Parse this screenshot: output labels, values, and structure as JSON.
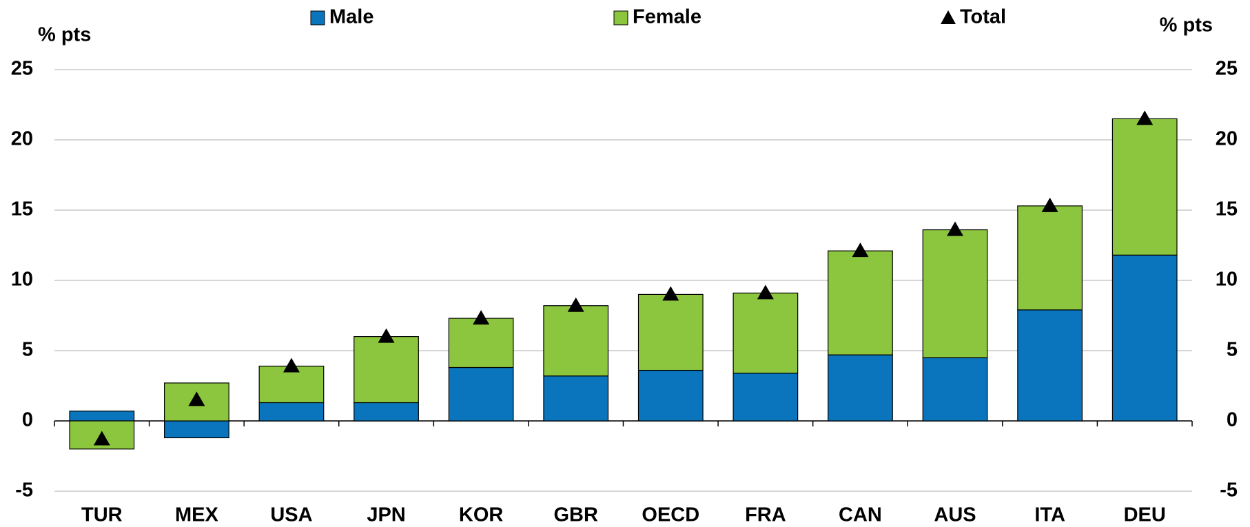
{
  "chart_data": {
    "type": "bar",
    "stacked": true,
    "y_label": "% pts",
    "y2_label": "% pts",
    "categories": [
      "TUR",
      "MEX",
      "USA",
      "JPN",
      "KOR",
      "GBR",
      "OECD",
      "FRA",
      "CAN",
      "AUS",
      "ITA",
      "DEU"
    ],
    "series": [
      {
        "name": "Male",
        "color": "#0a75bd",
        "values": [
          0.7,
          -1.2,
          1.3,
          1.3,
          3.8,
          3.2,
          3.6,
          3.4,
          4.7,
          4.5,
          7.9,
          11.8
        ]
      },
      {
        "name": "Female",
        "color": "#8cc63f",
        "values": [
          -2.0,
          2.7,
          2.6,
          4.7,
          3.5,
          5.0,
          5.4,
          5.7,
          7.4,
          9.1,
          7.4,
          9.7
        ]
      },
      {
        "name": "Total",
        "color": "#000000",
        "marker": "triangle",
        "values": [
          -1.3,
          1.5,
          3.9,
          6.0,
          7.3,
          8.2,
          9.0,
          9.1,
          12.1,
          13.6,
          15.3,
          21.5
        ]
      }
    ],
    "ylim": [
      -5,
      25
    ],
    "yticks": [
      -5,
      0,
      5,
      10,
      15,
      20,
      25
    ],
    "y2lim": [
      -5,
      25
    ],
    "y2ticks": [
      -5,
      0,
      5,
      10,
      15,
      20,
      25
    ],
    "grid": true,
    "legend": "top"
  }
}
